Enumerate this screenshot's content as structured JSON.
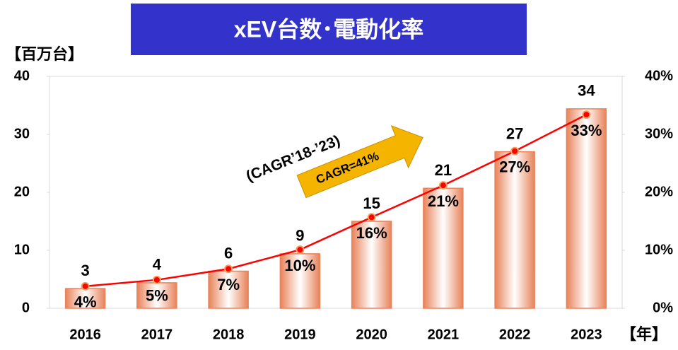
{
  "chart_data": {
    "type": "bar_line",
    "title": "xEV台数･電動化率",
    "y_label": "【百万台】",
    "x_label": "【年】",
    "annotations": [
      "(CAGR’18-’23)",
      "CAGR=41%"
    ],
    "categories": [
      "2016",
      "2017",
      "2018",
      "2019",
      "2020",
      "2021",
      "2022",
      "2023"
    ],
    "series": [
      {
        "type": "bar",
        "color": "#e8835a",
        "values": [
          3.4,
          4.4,
          6.4,
          9.4,
          15,
          20.7,
          27,
          34.4
        ],
        "value_labels": [
          "3",
          "4",
          "6",
          "9",
          "15",
          "21",
          "27",
          "34"
        ]
      },
      {
        "type": "line",
        "axis": "y2",
        "color": "#ff0000",
        "values": [
          3.8,
          4.9,
          6.8,
          10.1,
          15.7,
          21.2,
          27.1,
          33.4
        ],
        "value_labels": [
          "4%",
          "5%",
          "7%",
          "10%",
          "16%",
          "21%",
          "27%",
          "33%"
        ]
      }
    ],
    "ylim": [
      0,
      40
    ],
    "yticks": [
      0,
      10,
      20,
      30,
      40
    ],
    "y2lim": [
      0,
      40
    ],
    "y2ticks": [
      {
        "value": 0,
        "label": "0%"
      },
      {
        "value": 10,
        "label": "10%"
      },
      {
        "value": 20,
        "label": "20%"
      },
      {
        "value": 30,
        "label": "30%"
      },
      {
        "value": 40,
        "label": "40%"
      }
    ],
    "grid": false
  }
}
